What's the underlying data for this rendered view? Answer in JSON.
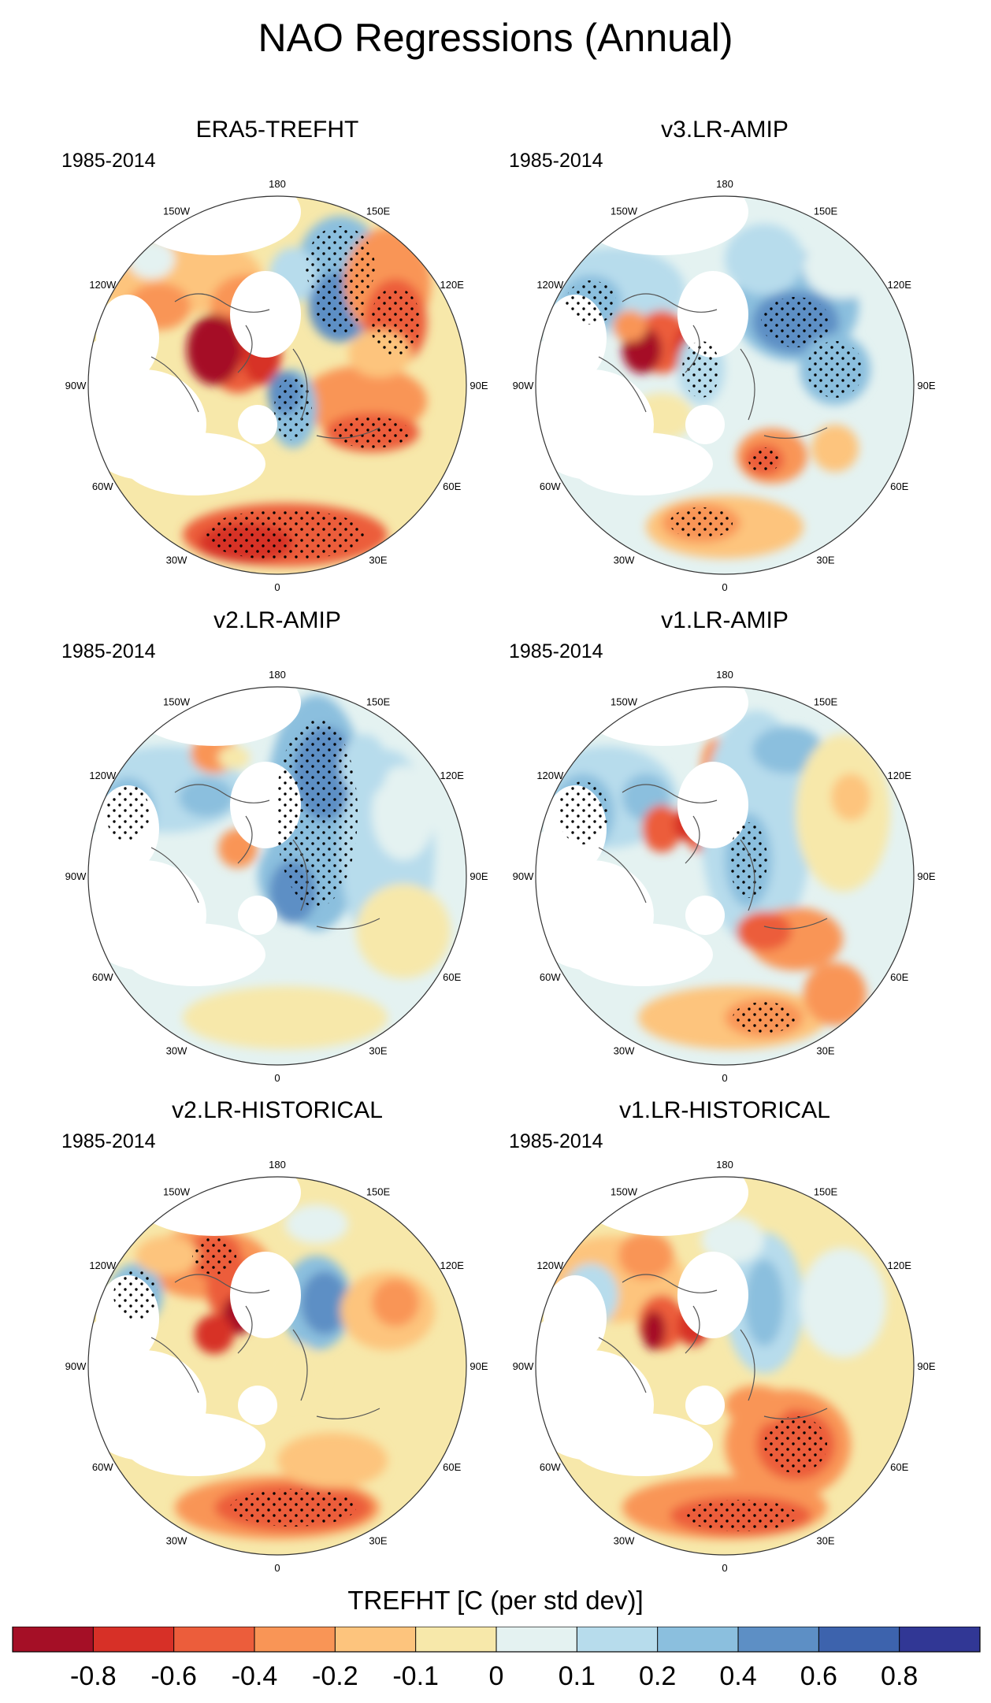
{
  "figure": {
    "title": "NAO Regressions (Annual)"
  },
  "panels": [
    {
      "title": "ERA5-TREFHT",
      "period": "1985-2014",
      "pattern": "era5"
    },
    {
      "title": "v3.LR-AMIP",
      "period": "1985-2014",
      "pattern": "v3amip"
    },
    {
      "title": "v2.LR-AMIP",
      "period": "1985-2014",
      "pattern": "v2amip"
    },
    {
      "title": "v1.LR-AMIP",
      "period": "1985-2014",
      "pattern": "v1amip"
    },
    {
      "title": "v2.LR-HISTORICAL",
      "period": "1985-2014",
      "pattern": "v2hist"
    },
    {
      "title": "v1.LR-HISTORICAL",
      "period": "1985-2014",
      "pattern": "v1hist"
    }
  ],
  "longitude_labels": [
    "180",
    "150E",
    "120E",
    "90E",
    "60E",
    "30E",
    "0",
    "30W",
    "60W",
    "90W",
    "120W",
    "150W"
  ],
  "colorbar": {
    "title": "TREFHT [C (per std dev)]",
    "colors": [
      "#a50f26",
      "#d73027",
      "#ec5d3b",
      "#f99556",
      "#fdc47d",
      "#f7e8aa",
      "#e4f2f1",
      "#b7dcec",
      "#8bbfde",
      "#5d8fc5",
      "#3d63ad",
      "#313795"
    ],
    "tick_labels": [
      "-0.8",
      "-0.6",
      "-0.4",
      "-0.2",
      "-0.1",
      "0",
      "0.1",
      "0.2",
      "0.4",
      "0.6",
      "0.8"
    ]
  },
  "chart_data": {
    "type": "heatmap",
    "title": "NAO Regressions (Annual)",
    "variable": "TREFHT",
    "units": "C (per std dev)",
    "period": "1985-2014",
    "projection": "north polar stereographic",
    "subplots": [
      "ERA5-TREFHT",
      "v3.LR-AMIP",
      "v2.LR-AMIP",
      "v1.LR-AMIP",
      "v2.LR-HISTORICAL",
      "v1.LR-HISTORICAL"
    ],
    "color_levels": [
      -0.8,
      -0.6,
      -0.4,
      -0.2,
      -0.1,
      0,
      0.1,
      0.2,
      0.4,
      0.6,
      0.8
    ]
  }
}
